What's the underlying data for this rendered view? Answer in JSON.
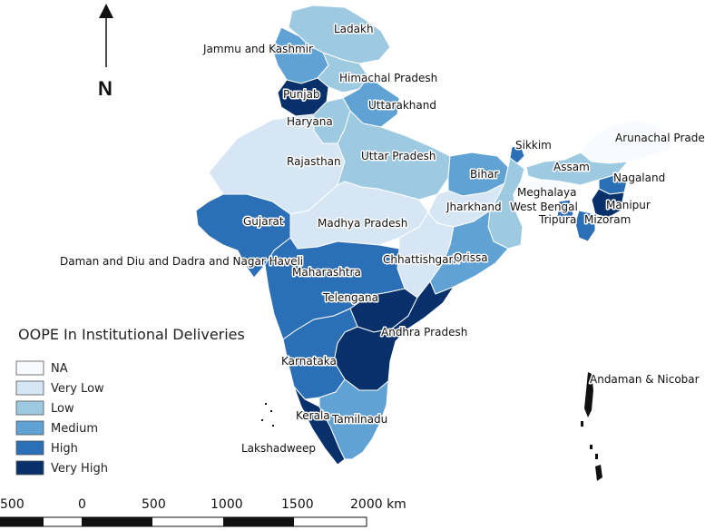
{
  "map": {
    "north_label": "N",
    "legend": {
      "title": "OOPE In Institutional Deliveries",
      "items": [
        {
          "label": "NA",
          "color": "#f7fbff"
        },
        {
          "label": "Very Low",
          "color": "#d6e6f4"
        },
        {
          "label": "Low",
          "color": "#9ecae1"
        },
        {
          "label": "Medium",
          "color": "#5fa2d3"
        },
        {
          "label": "High",
          "color": "#2b6fb6"
        },
        {
          "label": "Very High",
          "color": "#08306b"
        }
      ]
    },
    "scale_bar": {
      "ticks": [
        "500",
        "0",
        "500",
        "1000",
        "1500",
        "2000 km"
      ]
    },
    "regions": [
      {
        "name": "Ladakh",
        "category": "Low"
      },
      {
        "name": "Jammu and Kashmir",
        "category": "Medium"
      },
      {
        "name": "Himachal Pradesh",
        "category": "Low"
      },
      {
        "name": "Punjab",
        "category": "Very High"
      },
      {
        "name": "Uttarakhand",
        "category": "Medium"
      },
      {
        "name": "Haryana",
        "category": "Low"
      },
      {
        "name": "Rajasthan",
        "category": "Very Low"
      },
      {
        "name": "Uttar Pradesh",
        "category": "Low"
      },
      {
        "name": "Bihar",
        "category": "Medium"
      },
      {
        "name": "Sikkim",
        "category": "High"
      },
      {
        "name": "Arunachal Pradesh",
        "category": "NA"
      },
      {
        "name": "Assam",
        "category": "Low"
      },
      {
        "name": "Nagaland",
        "category": "High"
      },
      {
        "name": "Meghalaya",
        "category": "NA"
      },
      {
        "name": "Manipur",
        "category": "Very High"
      },
      {
        "name": "West Bengal",
        "category": "Low"
      },
      {
        "name": "Jharkhand",
        "category": "Very Low"
      },
      {
        "name": "Tripura",
        "category": "High"
      },
      {
        "name": "Mizoram",
        "category": "High"
      },
      {
        "name": "Gujarat",
        "category": "High"
      },
      {
        "name": "Madhya Pradesh",
        "category": "Very Low"
      },
      {
        "name": "Chhattishgarh",
        "category": "Very Low"
      },
      {
        "name": "Orissa",
        "category": "Medium"
      },
      {
        "name": "Daman and Diu and Dadra and Nagar Haveli",
        "category": "High"
      },
      {
        "name": "Maharashtra",
        "category": "High"
      },
      {
        "name": "Telengana",
        "category": "Very High"
      },
      {
        "name": "Andhra Pradesh",
        "category": "Very High"
      },
      {
        "name": "Karnataka",
        "category": "High"
      },
      {
        "name": "Kerala",
        "category": "Very High"
      },
      {
        "name": "Tamilnadu",
        "category": "Medium"
      },
      {
        "name": "Lakshadweep",
        "category": "NA"
      },
      {
        "name": "Andaman & Nicobar",
        "category": "NA"
      }
    ]
  }
}
